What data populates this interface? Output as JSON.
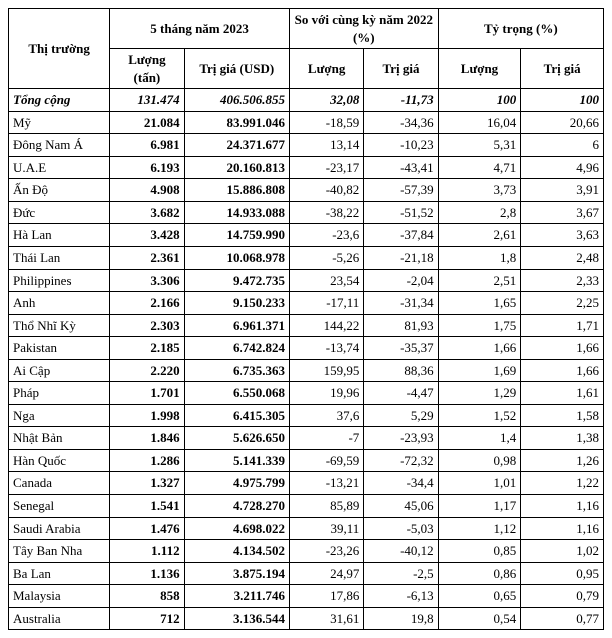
{
  "header": {
    "col_market": "Thị trường",
    "group_2023": "5 tháng năm 2023",
    "group_2022": "So với cùng kỳ năm 2022 (%)",
    "group_weight": "Tỷ trọng (%)",
    "qty": "Lượng (tấn)",
    "val": "Trị giá (USD)",
    "qty2": "Lượng",
    "val2": "Trị giá",
    "qty3": "Lượng",
    "val3": "Trị giá"
  },
  "total": {
    "label": "Tổng cộng",
    "qty": "131.474",
    "val": "406.506.855",
    "dqty": "32,08",
    "dval": "-11,73",
    "wqty": "100",
    "wval": "100"
  },
  "rows": [
    {
      "mkt": "Mỹ",
      "qty": "21.084",
      "val": "83.991.046",
      "dqty": "-18,59",
      "dval": "-34,36",
      "wqty": "16,04",
      "wval": "20,66"
    },
    {
      "mkt": "Đông Nam Á",
      "qty": "6.981",
      "val": "24.371.677",
      "dqty": "13,14",
      "dval": "-10,23",
      "wqty": "5,31",
      "wval": "6"
    },
    {
      "mkt": "U.A.E",
      "qty": "6.193",
      "val": "20.160.813",
      "dqty": "-23,17",
      "dval": "-43,41",
      "wqty": "4,71",
      "wval": "4,96"
    },
    {
      "mkt": "Ấn Độ",
      "qty": "4.908",
      "val": "15.886.808",
      "dqty": "-40,82",
      "dval": "-57,39",
      "wqty": "3,73",
      "wval": "3,91"
    },
    {
      "mkt": "Đức",
      "qty": "3.682",
      "val": "14.933.088",
      "dqty": "-38,22",
      "dval": "-51,52",
      "wqty": "2,8",
      "wval": "3,67"
    },
    {
      "mkt": "Hà Lan",
      "qty": "3.428",
      "val": "14.759.990",
      "dqty": "-23,6",
      "dval": "-37,84",
      "wqty": "2,61",
      "wval": "3,63"
    },
    {
      "mkt": "Thái Lan",
      "qty": "2.361",
      "val": "10.068.978",
      "dqty": "-5,26",
      "dval": "-21,18",
      "wqty": "1,8",
      "wval": "2,48"
    },
    {
      "mkt": "Philippines",
      "qty": "3.306",
      "val": "9.472.735",
      "dqty": "23,54",
      "dval": "-2,04",
      "wqty": "2,51",
      "wval": "2,33"
    },
    {
      "mkt": "Anh",
      "qty": "2.166",
      "val": "9.150.233",
      "dqty": "-17,11",
      "dval": "-31,34",
      "wqty": "1,65",
      "wval": "2,25"
    },
    {
      "mkt": "Thổ Nhĩ Kỳ",
      "qty": "2.303",
      "val": "6.961.371",
      "dqty": "144,22",
      "dval": "81,93",
      "wqty": "1,75",
      "wval": "1,71"
    },
    {
      "mkt": "Pakistan",
      "qty": "2.185",
      "val": "6.742.824",
      "dqty": "-13,74",
      "dval": "-35,37",
      "wqty": "1,66",
      "wval": "1,66"
    },
    {
      "mkt": "Ai Cập",
      "qty": "2.220",
      "val": "6.735.363",
      "dqty": "159,95",
      "dval": "88,36",
      "wqty": "1,69",
      "wval": "1,66"
    },
    {
      "mkt": "Pháp",
      "qty": "1.701",
      "val": "6.550.068",
      "dqty": "19,96",
      "dval": "-4,47",
      "wqty": "1,29",
      "wval": "1,61"
    },
    {
      "mkt": "Nga",
      "qty": "1.998",
      "val": "6.415.305",
      "dqty": "37,6",
      "dval": "5,29",
      "wqty": "1,52",
      "wval": "1,58"
    },
    {
      "mkt": "Nhật Bản",
      "qty": "1.846",
      "val": "5.626.650",
      "dqty": "-7",
      "dval": "-23,93",
      "wqty": "1,4",
      "wval": "1,38"
    },
    {
      "mkt": "Hàn Quốc",
      "qty": "1.286",
      "val": "5.141.339",
      "dqty": "-69,59",
      "dval": "-72,32",
      "wqty": "0,98",
      "wval": "1,26"
    },
    {
      "mkt": "Canada",
      "qty": "1.327",
      "val": "4.975.799",
      "dqty": "-13,21",
      "dval": "-34,4",
      "wqty": "1,01",
      "wval": "1,22"
    },
    {
      "mkt": "Senegal",
      "qty": "1.541",
      "val": "4.728.270",
      "dqty": "85,89",
      "dval": "45,06",
      "wqty": "1,17",
      "wval": "1,16"
    },
    {
      "mkt": "Saudi Arabia",
      "qty": "1.476",
      "val": "4.698.022",
      "dqty": "39,11",
      "dval": "-5,03",
      "wqty": "1,12",
      "wval": "1,16"
    },
    {
      "mkt": "Tây Ban Nha",
      "qty": "1.112",
      "val": "4.134.502",
      "dqty": "-23,26",
      "dval": "-40,12",
      "wqty": "0,85",
      "wval": "1,02"
    },
    {
      "mkt": "Ba Lan",
      "qty": "1.136",
      "val": "3.875.194",
      "dqty": "24,97",
      "dval": "-2,5",
      "wqty": "0,86",
      "wval": "0,95"
    },
    {
      "mkt": "Malaysia",
      "qty": "858",
      "val": "3.211.746",
      "dqty": "17,86",
      "dval": "-6,13",
      "wqty": "0,65",
      "wval": "0,79"
    },
    {
      "mkt": "Australia",
      "qty": "712",
      "val": "3.136.544",
      "dqty": "31,61",
      "dval": "19,8",
      "wqty": "0,54",
      "wval": "0,77"
    }
  ]
}
